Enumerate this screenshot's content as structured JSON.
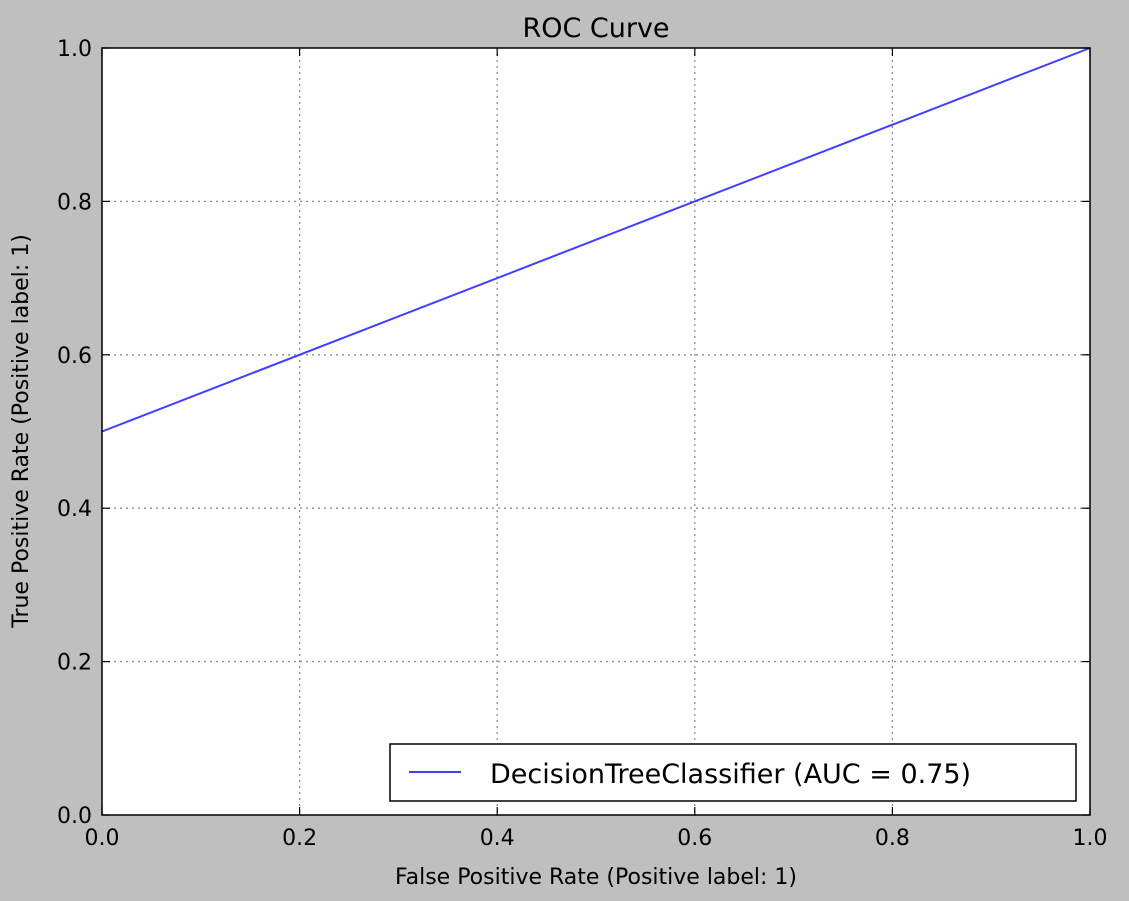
{
  "chart_data": {
    "type": "line",
    "title": "ROC Curve",
    "xlabel": "False Positive Rate (Positive label: 1)",
    "ylabel": "True Positive Rate (Positive label: 1)",
    "xlim": [
      0.0,
      1.0
    ],
    "ylim": [
      0.0,
      1.0
    ],
    "xticks": [
      "0.0",
      "0.2",
      "0.4",
      "0.6",
      "0.8",
      "1.0"
    ],
    "yticks": [
      "0.0",
      "0.2",
      "0.4",
      "0.6",
      "0.8",
      "1.0"
    ],
    "grid": true,
    "legend_position": "lower-right",
    "series": [
      {
        "name": "DecisionTreeClassifier (AUC = 0.75)",
        "color": "#3f3fff",
        "x": [
          0.0,
          1.0
        ],
        "y": [
          0.5,
          1.0
        ]
      }
    ]
  },
  "colors": {
    "figure_background": "#bfbfbf",
    "axes_background": "#ffffff",
    "grid": "#8c8c8c"
  }
}
